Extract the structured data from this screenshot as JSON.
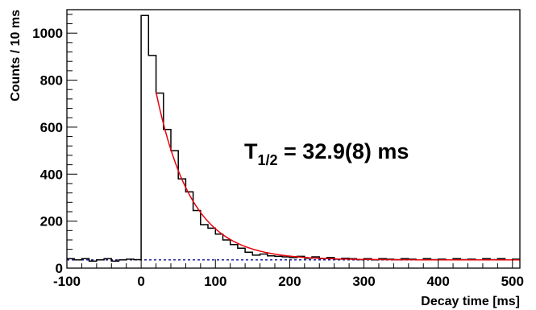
{
  "chart_data": {
    "type": "line",
    "title": "",
    "xlabel": "Decay time [ms]",
    "ylabel": "Counts / 10 ms",
    "xlim": [
      -100,
      510
    ],
    "ylim": [
      0,
      1100
    ],
    "xticks": [
      -100,
      0,
      100,
      200,
      300,
      400,
      500
    ],
    "yticks": [
      0,
      200,
      400,
      600,
      800,
      1000
    ],
    "grid": false,
    "legend": "none",
    "annotation": {
      "label": "T",
      "subscript": "1/2",
      "value": " = 32.9(8) ms"
    },
    "series": [
      {
        "style": "histogram",
        "color": "#000000",
        "bin_width": 10,
        "x": [
          -100,
          -90,
          -80,
          -70,
          -60,
          -50,
          -40,
          -30,
          -20,
          -10,
          0,
          10,
          20,
          30,
          40,
          50,
          60,
          70,
          80,
          90,
          100,
          110,
          120,
          130,
          140,
          150,
          160,
          170,
          180,
          190,
          200,
          210,
          220,
          230,
          240,
          250,
          260,
          270,
          280,
          290,
          300,
          310,
          320,
          330,
          340,
          350,
          360,
          370,
          380,
          390,
          400,
          410,
          420,
          430,
          440,
          450,
          460,
          470,
          480,
          490,
          500
        ],
        "y": [
          40,
          35,
          40,
          30,
          35,
          40,
          30,
          35,
          38,
          36,
          1075,
          905,
          745,
          590,
          500,
          380,
          325,
          245,
          185,
          170,
          145,
          120,
          100,
          85,
          68,
          55,
          60,
          52,
          50,
          48,
          45,
          50,
          42,
          48,
          40,
          45,
          38,
          42,
          40,
          36,
          40,
          35,
          40,
          38,
          36,
          40,
          38,
          35,
          40,
          36,
          38,
          35,
          40,
          36,
          38,
          35,
          40,
          36,
          40,
          35,
          38
        ]
      },
      {
        "style": "fit",
        "color": "#e8000b",
        "function": "exponential_decay_plus_background",
        "x_range": [
          20,
          510
        ],
        "amplitude": 1090,
        "half_life_ms": 32.9,
        "background": 35
      },
      {
        "style": "background",
        "color": "#1f1f9a",
        "level": 35,
        "x_range": [
          -100,
          510
        ]
      }
    ]
  }
}
